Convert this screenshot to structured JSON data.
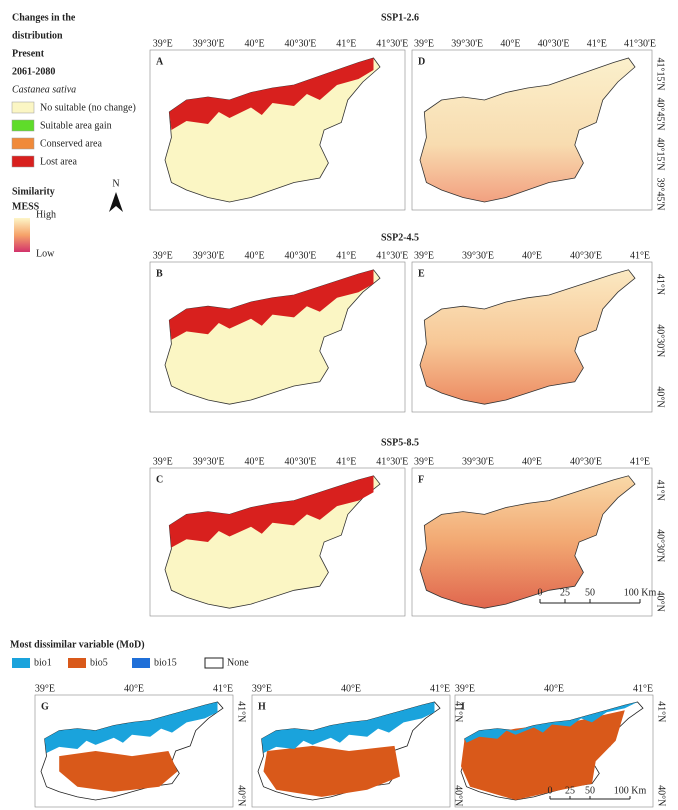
{
  "legend": {
    "title": [
      "Changes in the",
      "distribution",
      "Present",
      "2061-2080"
    ],
    "species": "Castanea sativa",
    "items": [
      "No suitable (no change)",
      "Suitable area gain",
      "Conserved area",
      "Lost area"
    ],
    "mess_title": [
      "Similarity",
      "MESS"
    ],
    "mess_high": "High",
    "mess_low": "Low",
    "north": "N"
  },
  "rows": [
    {
      "title": "SSP1-2.6",
      "left": {
        "letter": "A",
        "xticks": [
          "39°E",
          "39°30'E",
          "40°E",
          "40°30'E",
          "41°E",
          "41°30'E"
        ]
      },
      "right": {
        "letter": "D",
        "xticks": [
          "39°E",
          "39°30'E",
          "40°E",
          "40°30'E",
          "41°E",
          "41°30'E"
        ],
        "yticks": [
          "41°15'N",
          "40°45'N",
          "40°15'N",
          "39°45'N"
        ]
      }
    },
    {
      "title": "SSP2-4.5",
      "left": {
        "letter": "B",
        "xticks": [
          "39°E",
          "39°30'E",
          "40°E",
          "40°30'E",
          "41°E",
          "41°30'E"
        ]
      },
      "right": {
        "letter": "E",
        "xticks": [
          "39°E",
          "39°30'E",
          "40°E",
          "40°30'E",
          "41°E"
        ],
        "yticks": [
          "41°N",
          "40°30'N",
          "40°N"
        ]
      }
    },
    {
      "title": "SSP5-8.5",
      "left": {
        "letter": "C",
        "xticks": [
          "39°E",
          "39°30'E",
          "40°E",
          "40°30'E",
          "41°E",
          "41°30'E"
        ]
      },
      "right": {
        "letter": "F",
        "xticks": [
          "39°E",
          "39°30'E",
          "40°E",
          "40°30'E",
          "41°E"
        ],
        "yticks": [
          "41°N",
          "40°30'N",
          "40°N"
        ]
      }
    }
  ],
  "scale_bar": [
    "0",
    "25",
    "50",
    "100 Km"
  ],
  "mod": {
    "title": "Most dissimilar variable (MoD)",
    "legend": [
      "bio1",
      "bio5",
      "bio15",
      "None"
    ],
    "panels": [
      {
        "letter": "G",
        "xticks": [
          "39°E",
          "40°E",
          "41°E"
        ],
        "yticks": [
          "41°N",
          "40°N"
        ]
      },
      {
        "letter": "H",
        "xticks": [
          "39°E",
          "40°E",
          "41°E"
        ],
        "yticks": [
          "41°N",
          "40°N"
        ]
      },
      {
        "letter": "I",
        "xticks": [
          "39°E",
          "40°E",
          "41°E"
        ],
        "yticks": [
          "41°N",
          "40°N"
        ],
        "scale_bar": [
          "0",
          "25",
          "50",
          "100 Km"
        ]
      }
    ]
  }
}
